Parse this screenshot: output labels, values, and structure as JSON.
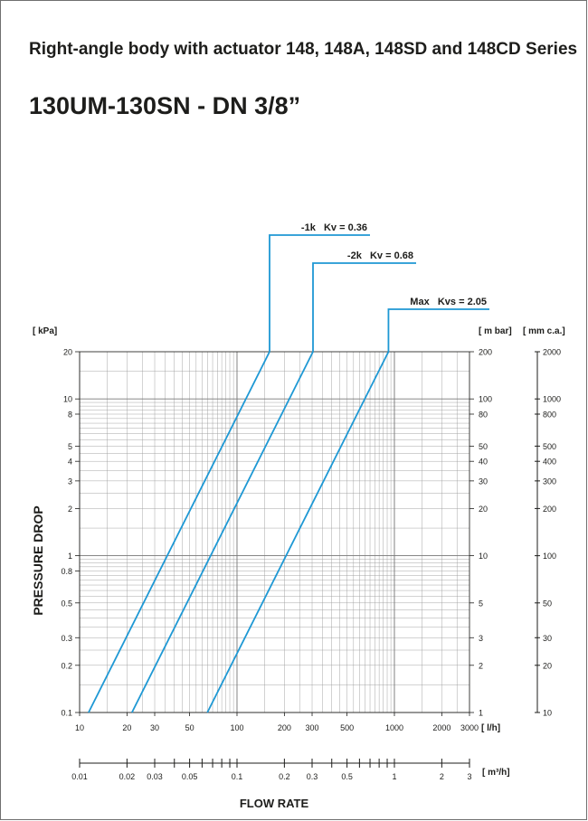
{
  "header": {
    "title": "Right-angle body with actuator 148, 148A, 148SD and 148CD Series",
    "subtitle": "130UM-130SN - DN 3/8”"
  },
  "colors": {
    "grid": "#9c9c9c",
    "axis": "#1d1d1b",
    "curve": "#1e98d4",
    "text": "#1d1d1b"
  },
  "chart_data": {
    "type": "line",
    "scale": "log-log",
    "grid": true,
    "xlabel": "FLOW RATE",
    "ylabel": "PRESSURE DROP",
    "x_unit": "[ l/h]",
    "x2_unit": "[ m³/h]",
    "y_unit": "[ kPa]",
    "y2_unit": "[ m bar]",
    "y3_unit": "[ mm c.a.]",
    "xlim": [
      10,
      3000
    ],
    "ylim": [
      0.1,
      20
    ],
    "x_ticks": [
      10,
      20,
      30,
      50,
      100,
      200,
      300,
      500,
      1000,
      2000,
      3000
    ],
    "x_tick_labels": [
      "10",
      "20",
      "30",
      "50",
      "100",
      "200",
      "300",
      "500",
      "1000",
      "2000",
      "3000"
    ],
    "x2_ticks": [
      0.01,
      0.02,
      0.03,
      0.05,
      0.1,
      0.2,
      0.3,
      0.5,
      1,
      2,
      3
    ],
    "x2_tick_labels": [
      "0.01",
      "0.02",
      "0.03",
      "0.05",
      "0.1",
      "0.2",
      "0.3",
      "0.5",
      "1",
      "2",
      "3"
    ],
    "y_ticks": [
      0.1,
      0.2,
      0.3,
      0.5,
      0.8,
      1,
      2,
      3,
      4,
      5,
      8,
      10,
      20
    ],
    "y_tick_labels": [
      "0.1",
      "0.2",
      "0.3",
      "0.5",
      "0.8",
      "1",
      "2",
      "3",
      "4",
      "5",
      "8",
      "10",
      "20"
    ],
    "y2_ticks": [
      1,
      2,
      3,
      5,
      10,
      20,
      30,
      40,
      50,
      80,
      100,
      200
    ],
    "y2_tick_labels": [
      "1",
      "2",
      "3",
      "5",
      "10",
      "20",
      "30",
      "40",
      "50",
      "80",
      "100",
      "200"
    ],
    "y3_ticks": [
      10,
      20,
      30,
      50,
      100,
      200,
      300,
      400,
      500,
      800,
      1000,
      2000
    ],
    "y3_tick_labels": [
      "10",
      "20",
      "30",
      "50",
      "100",
      "200",
      "300",
      "400",
      "500",
      "800",
      "1000",
      "2000"
    ],
    "series": [
      {
        "name": "-1k   Kv = 0.36",
        "kv": 0.36,
        "x": [
          11.4,
          161
        ],
        "y": [
          0.1,
          20
        ]
      },
      {
        "name": "-2k   Kv = 0.68",
        "kv": 0.68,
        "x": [
          21.5,
          304
        ],
        "y": [
          0.1,
          20
        ]
      },
      {
        "name": "Max   Kvs = 2.05",
        "kv": 2.05,
        "x": [
          64.8,
          917
        ],
        "y": [
          0.1,
          20
        ]
      }
    ]
  }
}
